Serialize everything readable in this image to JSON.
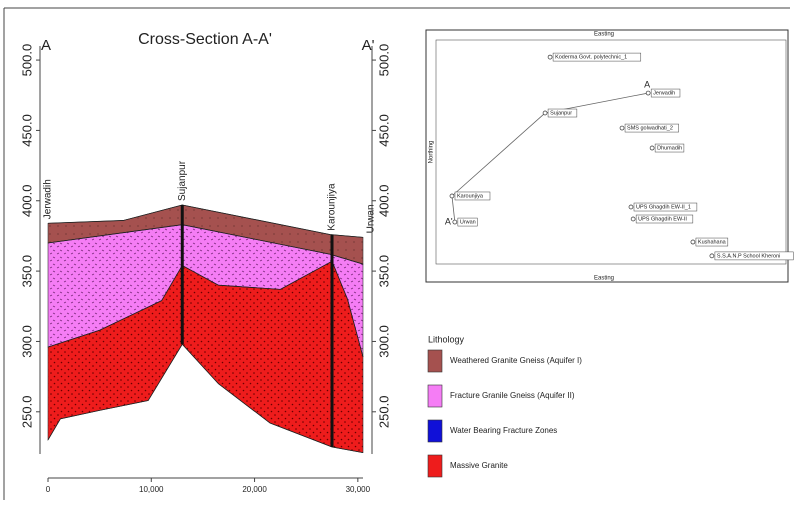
{
  "cross_section": {
    "title": "Cross-Section A-A'",
    "end_labels": [
      "A",
      "A'"
    ],
    "xlim": [
      0,
      30500
    ],
    "xticks": [
      {
        "value": 0,
        "label": "0"
      },
      {
        "value": 10000,
        "label": "10,000"
      },
      {
        "value": 20000,
        "label": "20,000"
      },
      {
        "value": 30000,
        "label": "30,000"
      }
    ],
    "ylim": [
      220,
      510
    ],
    "yticks": [
      {
        "value": 250,
        "label": "250.0"
      },
      {
        "value": 300,
        "label": "300.0"
      },
      {
        "value": 350,
        "label": "350.0"
      },
      {
        "value": 400,
        "label": "400.0"
      },
      {
        "value": 450,
        "label": "450.0"
      },
      {
        "value": 500,
        "label": "500.0"
      }
    ],
    "wells": [
      {
        "name": "Jerwadih",
        "x": 0
      },
      {
        "name": "Sujanpur",
        "x": 13000
      },
      {
        "name": "Karounjiya",
        "x": 27500
      },
      {
        "name": "Urwan",
        "x": 30500
      }
    ],
    "boundaries": [
      {
        "x": [
          0,
          7300,
          13000,
          27300,
          30500
        ],
        "y": [
          384,
          386,
          397,
          376,
          374
        ]
      },
      {
        "x": [
          0,
          13000,
          27300,
          30500
        ],
        "y": [
          370,
          383,
          362,
          355
        ]
      },
      {
        "x": [
          0,
          5000,
          11000,
          13000,
          16500,
          22500,
          27500,
          29000,
          30500
        ],
        "y": [
          296,
          308,
          329,
          354,
          340,
          337,
          357,
          330,
          289
        ]
      },
      {
        "x": [
          0,
          1200,
          5000,
          9700,
          13000,
          16500,
          21500,
          27500,
          30500
        ],
        "y": [
          230,
          245,
          251,
          258,
          298,
          270,
          242,
          225,
          221
        ]
      }
    ]
  },
  "lithology": {
    "title": "Lithology",
    "items": [
      {
        "name": "Weathered Granite Gneiss (Aquifer I)",
        "color": "#a5514f"
      },
      {
        "name": "Fracture Granile Gneiss (Aquifer II)",
        "color": "#f57df5"
      },
      {
        "name": "Water Bearing Fracture Zones",
        "color": "#1010d8"
      },
      {
        "name": "Massive Granite",
        "color": "#ee1c1c"
      }
    ]
  },
  "location_map": {
    "x_label": "Easting",
    "y_label": "Northing",
    "end_labels": [
      "A",
      "A'"
    ],
    "xlim": [
      0,
      100
    ],
    "ylim": [
      0,
      100
    ],
    "points": [
      {
        "name": "Koderma Govt. polytechnic_1",
        "x": 34.1,
        "y": 90.6
      },
      {
        "name": "Jerwadih",
        "x": 61.5,
        "y": 75.3
      },
      {
        "name": "Sujanpur",
        "x": 32.7,
        "y": 66.8
      },
      {
        "name": "SMS golwadhati_2",
        "x": 54.2,
        "y": 60.4
      },
      {
        "name": "Dhumadih",
        "x": 62.6,
        "y": 51.9
      },
      {
        "name": "Karounjiya",
        "x": 6.7,
        "y": 31.5
      },
      {
        "name": "UPS Ghagdih EW-II_1",
        "x": 56.7,
        "y": 26.8
      },
      {
        "name": "UPS Ghagdih EW-II",
        "x": 57.3,
        "y": 21.7
      },
      {
        "name": "Urwan",
        "x": 7.5,
        "y": 20.4
      },
      {
        "name": "Kushahana",
        "x": 74.0,
        "y": 11.9
      },
      {
        "name": "S.S.A.N.P School Kheroni",
        "x": 79.3,
        "y": 6.0
      }
    ]
  }
}
